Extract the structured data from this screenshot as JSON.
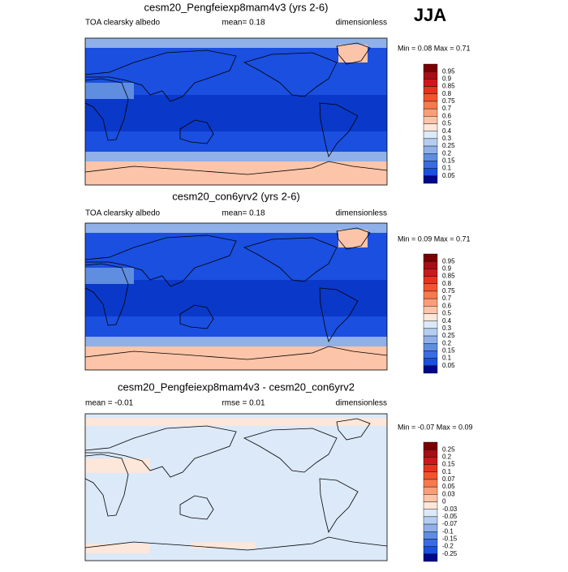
{
  "season": "JJA",
  "colorbar_colors": [
    "#7a0000",
    "#a50f15",
    "#cb181d",
    "#e6331f",
    "#f2552e",
    "#f77a4e",
    "#fa9e78",
    "#fcc4a8",
    "#fde6da",
    "#dbe9f8",
    "#b4cdf0",
    "#8fb0e8",
    "#5f8de0",
    "#3a6ce0",
    "#1a4fe0",
    "#00078a"
  ],
  "panels": [
    {
      "title": "cesm20_Pengfeiexp8mam4v3 (yrs 2-6)",
      "left_label": "TOA clearsky albedo",
      "center_label": "mean=  0.18",
      "right_label": "dimensionless",
      "min_max": "Min =  0.08 Max =  0.71",
      "colorbar_labels": [
        "0.95",
        "0.9",
        "0.85",
        "0.8",
        "0.75",
        "0.7",
        "0.6",
        "0.5",
        "0.4",
        "0.3",
        "0.25",
        "0.2",
        "0.15",
        "0.1",
        "0.05"
      ]
    },
    {
      "title": "cesm20_con6yrv2 (yrs 2-6)",
      "left_label": "TOA clearsky albedo",
      "center_label": "mean=  0.18",
      "right_label": "dimensionless",
      "min_max": "Min =  0.09 Max =  0.71",
      "colorbar_labels": [
        "0.95",
        "0.9",
        "0.85",
        "0.8",
        "0.75",
        "0.7",
        "0.6",
        "0.5",
        "0.4",
        "0.3",
        "0.25",
        "0.2",
        "0.15",
        "0.1",
        "0.05"
      ]
    },
    {
      "title": "cesm20_Pengfeiexp8mam4v3 - cesm20_con6yrv2",
      "left_label": "mean =  -0.01",
      "center_label": "rmse =  0.01",
      "right_label": "dimensionless",
      "min_max": "Min =  -0.07 Max =  0.09",
      "colorbar_labels": [
        "0.25",
        "0.2",
        "0.15",
        "0.1",
        "0.07",
        "0.05",
        "0.03",
        "0",
        "-0.03",
        "-0.05",
        "-0.07",
        "-0.1",
        "-0.15",
        "-0.2",
        "-0.25"
      ]
    }
  ]
}
